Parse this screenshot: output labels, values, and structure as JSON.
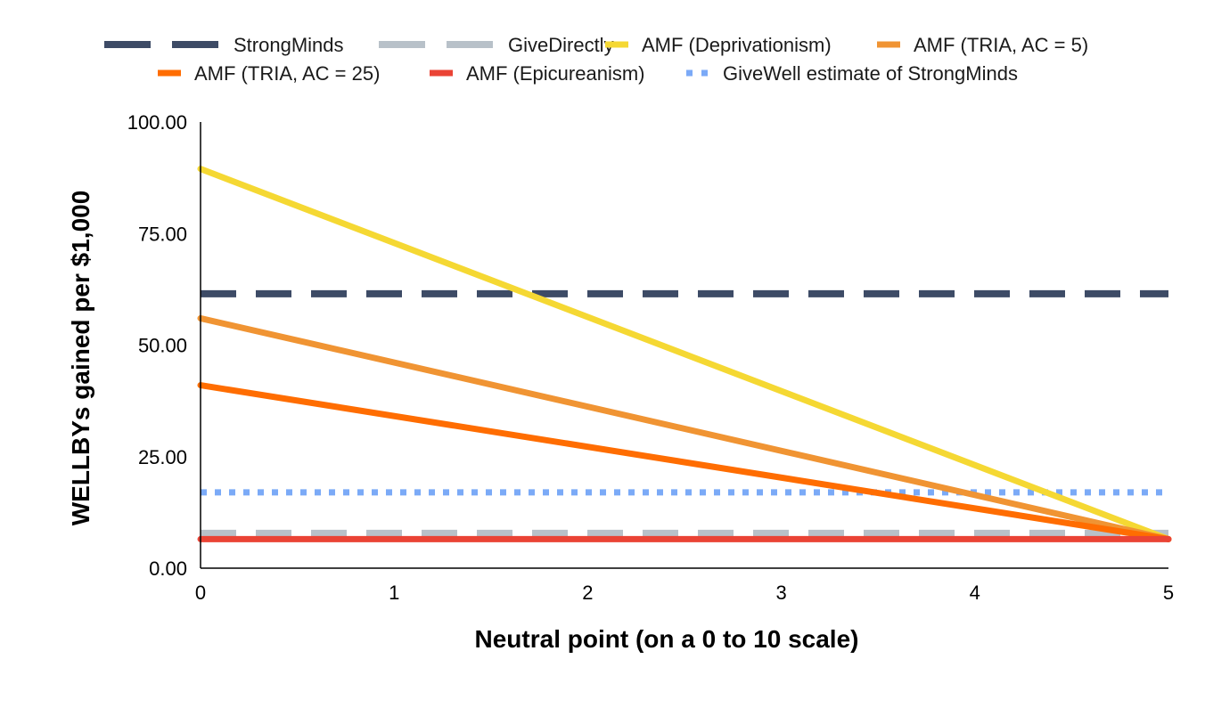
{
  "chart_data": {
    "type": "line",
    "title": "",
    "xlabel": "Neutral point (on a 0 to 10 scale)",
    "ylabel": "WELLBYs gained per $1,000",
    "xlim": [
      0,
      5
    ],
    "ylim": [
      0,
      100
    ],
    "x_ticks": [
      0,
      1,
      2,
      3,
      4,
      5
    ],
    "x_tick_labels": [
      "0",
      "1",
      "2",
      "3",
      "4",
      "5"
    ],
    "y_ticks": [
      0,
      25,
      50,
      75,
      100
    ],
    "y_tick_labels": [
      "0.00",
      "25.00",
      "50.00",
      "75.00",
      "100.00"
    ],
    "grid": false,
    "legend_position": "top",
    "series": [
      {
        "name": "StrongMinds",
        "x": [
          0,
          5
        ],
        "values": [
          61.5,
          61.5
        ],
        "color": "#3d4b66",
        "style": "dashed"
      },
      {
        "name": "GiveDirectly",
        "x": [
          0,
          5
        ],
        "values": [
          7.8,
          7.8
        ],
        "color": "#b8c1c9",
        "style": "dashed"
      },
      {
        "name": "AMF (Deprivationism)",
        "x": [
          0,
          5
        ],
        "values": [
          89.5,
          6.5
        ],
        "color": "#f5d833",
        "style": "solid"
      },
      {
        "name": "AMF (TRIA, AC = 5)",
        "x": [
          0,
          5
        ],
        "values": [
          56,
          6.5
        ],
        "color": "#f09433",
        "style": "solid"
      },
      {
        "name": "AMF (TRIA, AC = 25)",
        "x": [
          0,
          5
        ],
        "values": [
          41,
          6.5
        ],
        "color": "#ff6d01",
        "style": "solid"
      },
      {
        "name": "AMF (Epicureanism)",
        "x": [
          0,
          5
        ],
        "values": [
          6.5,
          6.5
        ],
        "color": "#ea4335",
        "style": "solid"
      },
      {
        "name": "GiveWell estimate of StrongMinds",
        "x": [
          0,
          5
        ],
        "values": [
          17,
          17
        ],
        "color": "#7baaf7",
        "style": "dotted"
      }
    ]
  }
}
